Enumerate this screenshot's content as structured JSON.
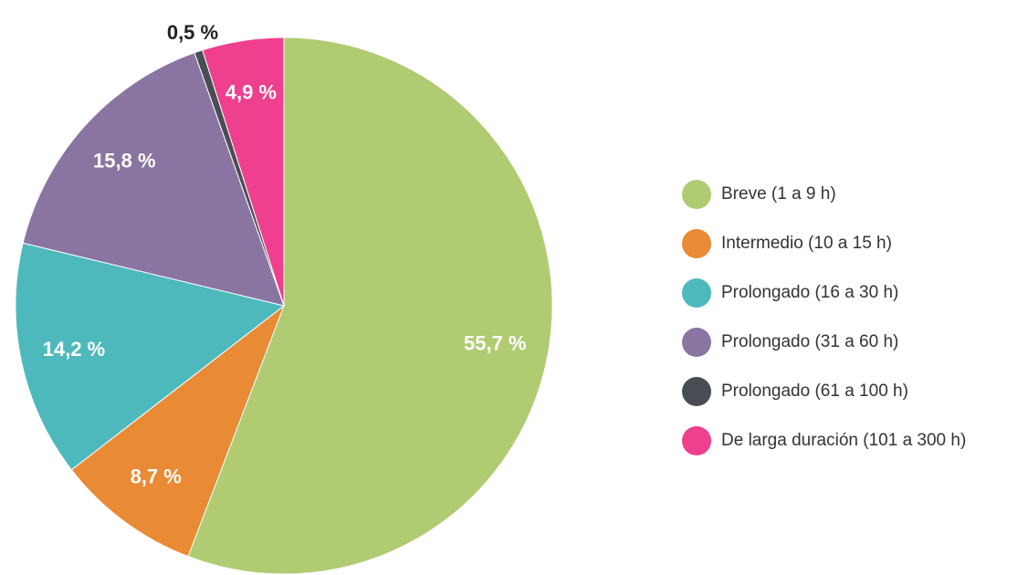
{
  "chart_data": {
    "type": "pie",
    "categories": [
      "Breve (1 a 9 h)",
      "Intermedio (10 a 15 h)",
      "Prolongado (16 a 30 h)",
      "Prolongado (31 a 60 h)",
      "Prolongado (61 a 100 h)",
      "De larga duración (101 a 300 h)"
    ],
    "values": [
      55.7,
      8.7,
      14.2,
      15.8,
      0.5,
      4.9
    ],
    "value_labels": [
      "55,7 %",
      "8,7 %",
      "14,2 %",
      "15,8 %",
      "0,5 %",
      "4,9 %"
    ],
    "colors": [
      "#b0cb72",
      "#e98a35",
      "#4db9bc",
      "#8a74a1",
      "#4b4d55",
      "#ef3f8f"
    ],
    "legend": "right"
  }
}
